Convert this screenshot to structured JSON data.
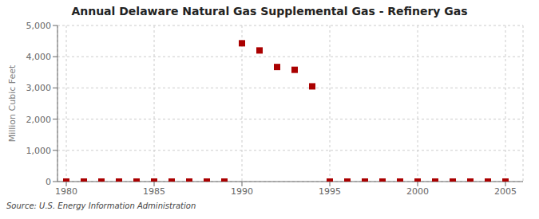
{
  "chart_data": {
    "type": "scatter",
    "title": "Annual Delaware Natural Gas Supplemental Gas - Refinery Gas",
    "ylabel": "Million Cubic Feet",
    "annotations": [
      "Source: U.S. Energy Information Administration"
    ],
    "x": [
      1980,
      1981,
      1982,
      1983,
      1984,
      1985,
      1986,
      1987,
      1988,
      1989,
      1990,
      1991,
      1992,
      1993,
      1994,
      1995,
      1996,
      1997,
      1998,
      1999,
      2000,
      2001,
      2002,
      2003,
      2004,
      2005
    ],
    "values": [
      0,
      0,
      0,
      0,
      0,
      0,
      0,
      0,
      0,
      0,
      4430,
      4200,
      3670,
      3580,
      3050,
      0,
      0,
      0,
      0,
      0,
      0,
      0,
      0,
      0,
      0,
      0
    ],
    "color": "#aa0000",
    "marker": "square",
    "xlim": [
      1979.5,
      2006
    ],
    "xticks": [
      1980,
      1985,
      1990,
      1995,
      2000,
      2005
    ],
    "ylim": [
      0,
      5000
    ],
    "yticks": [
      0,
      {
        "value": 1000,
        "label": "1,000"
      },
      {
        "value": 2000,
        "label": "2,000"
      },
      {
        "value": 3000,
        "label": "3,000"
      },
      {
        "value": 4000,
        "label": "4,000"
      },
      {
        "value": 5000,
        "label": "5,000"
      }
    ],
    "grid": true
  }
}
